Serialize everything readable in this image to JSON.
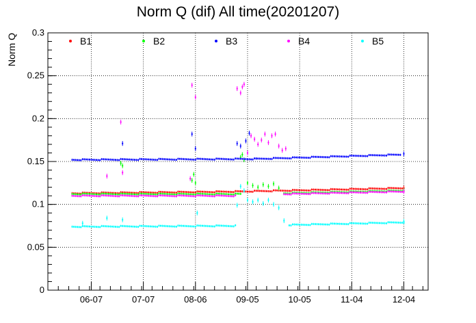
{
  "chart_data": {
    "type": "scatter",
    "title": "Norm Q (dif) All time(20201207)",
    "ylabel": "Norm Q",
    "xlabel": "",
    "ylim": [
      0,
      0.3
    ],
    "xlim": [
      "2020-05-13",
      "2020-12-18"
    ],
    "grid": true,
    "legend_position": "top",
    "yticks": [
      "0",
      "0.05",
      "0.1",
      "0.15",
      "0.2",
      "0.25",
      "0.3"
    ],
    "xticks": [
      {
        "label": "06-07",
        "date": "2020-06-07"
      },
      {
        "label": "07-07",
        "date": "2020-07-07"
      },
      {
        "label": "08-06",
        "date": "2020-08-06"
      },
      {
        "label": "09-05",
        "date": "2020-09-05"
      },
      {
        "label": "10-05",
        "date": "2020-10-05"
      },
      {
        "label": "11-04",
        "date": "2020-11-04"
      },
      {
        "label": "12-04",
        "date": "2020-12-04"
      }
    ],
    "series": [
      {
        "name": "B1",
        "color": "#ff0000",
        "segments": [
          {
            "from": "2020-05-27",
            "to": "2020-09-01",
            "y0": 0.113,
            "y1": 0.115
          },
          {
            "from": "2020-09-01",
            "to": "2020-12-04",
            "y0": 0.115,
            "y1": 0.119
          }
        ],
        "points": [
          {
            "date": "2020-12-04",
            "y": 0.119
          }
        ]
      },
      {
        "name": "B2",
        "color": "#00ff00",
        "segments": [
          {
            "from": "2020-05-27",
            "to": "2020-09-01",
            "y0": 0.112,
            "y1": 0.112
          },
          {
            "from": "2020-09-26",
            "to": "2020-12-04",
            "y0": 0.113,
            "y1": 0.116
          }
        ],
        "points": [
          {
            "date": "2020-06-24",
            "y": 0.148
          },
          {
            "date": "2020-06-25",
            "y": 0.145
          },
          {
            "date": "2020-08-04",
            "y": 0.128
          },
          {
            "date": "2020-08-05",
            "y": 0.135
          },
          {
            "date": "2020-08-06",
            "y": 0.125
          },
          {
            "date": "2020-09-01",
            "y": 0.155
          },
          {
            "date": "2020-09-02",
            "y": 0.158
          },
          {
            "date": "2020-09-03",
            "y": 0.152
          },
          {
            "date": "2020-09-05",
            "y": 0.125
          },
          {
            "date": "2020-09-08",
            "y": 0.122
          },
          {
            "date": "2020-09-11",
            "y": 0.12
          },
          {
            "date": "2020-09-14",
            "y": 0.123
          },
          {
            "date": "2020-09-17",
            "y": 0.121
          },
          {
            "date": "2020-09-20",
            "y": 0.124
          },
          {
            "date": "2020-09-23",
            "y": 0.119
          },
          {
            "date": "2020-12-04",
            "y": 0.116
          }
        ]
      },
      {
        "name": "B3",
        "color": "#0000ff",
        "segments": [
          {
            "from": "2020-05-27",
            "to": "2020-09-10",
            "y0": 0.152,
            "y1": 0.153
          },
          {
            "from": "2020-09-10",
            "to": "2020-12-02",
            "y0": 0.153,
            "y1": 0.158
          }
        ],
        "points": [
          {
            "date": "2020-06-25",
            "y": 0.171
          },
          {
            "date": "2020-08-04",
            "y": 0.182
          },
          {
            "date": "2020-08-06",
            "y": 0.165
          },
          {
            "date": "2020-08-30",
            "y": 0.171
          },
          {
            "date": "2020-09-01",
            "y": 0.168
          },
          {
            "date": "2020-09-04",
            "y": 0.174
          },
          {
            "date": "2020-09-06",
            "y": 0.183
          },
          {
            "date": "2020-12-04",
            "y": 0.159
          }
        ]
      },
      {
        "name": "B4",
        "color": "#ff00ff",
        "segments": [
          {
            "from": "2020-05-27",
            "to": "2020-08-29",
            "y0": 0.11,
            "y1": 0.11
          },
          {
            "from": "2020-09-26",
            "to": "2020-12-04",
            "y0": 0.112,
            "y1": 0.115
          }
        ],
        "points": [
          {
            "date": "2020-06-16",
            "y": 0.133
          },
          {
            "date": "2020-06-24",
            "y": 0.196
          },
          {
            "date": "2020-06-25",
            "y": 0.137
          },
          {
            "date": "2020-08-04",
            "y": 0.239
          },
          {
            "date": "2020-08-06",
            "y": 0.225
          },
          {
            "date": "2020-08-03",
            "y": 0.13
          },
          {
            "date": "2020-08-30",
            "y": 0.235
          },
          {
            "date": "2020-09-01",
            "y": 0.23
          },
          {
            "date": "2020-09-02",
            "y": 0.237
          },
          {
            "date": "2020-09-03",
            "y": 0.24
          },
          {
            "date": "2020-09-05",
            "y": 0.16
          },
          {
            "date": "2020-09-07",
            "y": 0.18
          },
          {
            "date": "2020-09-09",
            "y": 0.176
          },
          {
            "date": "2020-09-11",
            "y": 0.17
          },
          {
            "date": "2020-09-13",
            "y": 0.175
          },
          {
            "date": "2020-09-15",
            "y": 0.182
          },
          {
            "date": "2020-09-17",
            "y": 0.172
          },
          {
            "date": "2020-09-19",
            "y": 0.18
          },
          {
            "date": "2020-09-21",
            "y": 0.182
          },
          {
            "date": "2020-09-23",
            "y": 0.168
          },
          {
            "date": "2020-09-25",
            "y": 0.163
          },
          {
            "date": "2020-09-27",
            "y": 0.165
          },
          {
            "date": "2020-12-04",
            "y": 0.115
          }
        ]
      },
      {
        "name": "B5",
        "color": "#00ffff",
        "segments": [
          {
            "from": "2020-05-27",
            "to": "2020-08-29",
            "y0": 0.074,
            "y1": 0.075
          },
          {
            "from": "2020-09-29",
            "to": "2020-12-04",
            "y0": 0.076,
            "y1": 0.079
          }
        ],
        "points": [
          {
            "date": "2020-06-02",
            "y": 0.078
          },
          {
            "date": "2020-06-16",
            "y": 0.084
          },
          {
            "date": "2020-06-25",
            "y": 0.082
          },
          {
            "date": "2020-08-07",
            "y": 0.09
          },
          {
            "date": "2020-08-30",
            "y": 0.099
          },
          {
            "date": "2020-09-01",
            "y": 0.121
          },
          {
            "date": "2020-09-03",
            "y": 0.116
          },
          {
            "date": "2020-09-05",
            "y": 0.105
          },
          {
            "date": "2020-09-08",
            "y": 0.103
          },
          {
            "date": "2020-09-11",
            "y": 0.105
          },
          {
            "date": "2020-09-14",
            "y": 0.101
          },
          {
            "date": "2020-09-17",
            "y": 0.105
          },
          {
            "date": "2020-09-20",
            "y": 0.1
          },
          {
            "date": "2020-09-23",
            "y": 0.096
          },
          {
            "date": "2020-09-26",
            "y": 0.081
          },
          {
            "date": "2020-12-04",
            "y": 0.08
          }
        ]
      }
    ]
  }
}
